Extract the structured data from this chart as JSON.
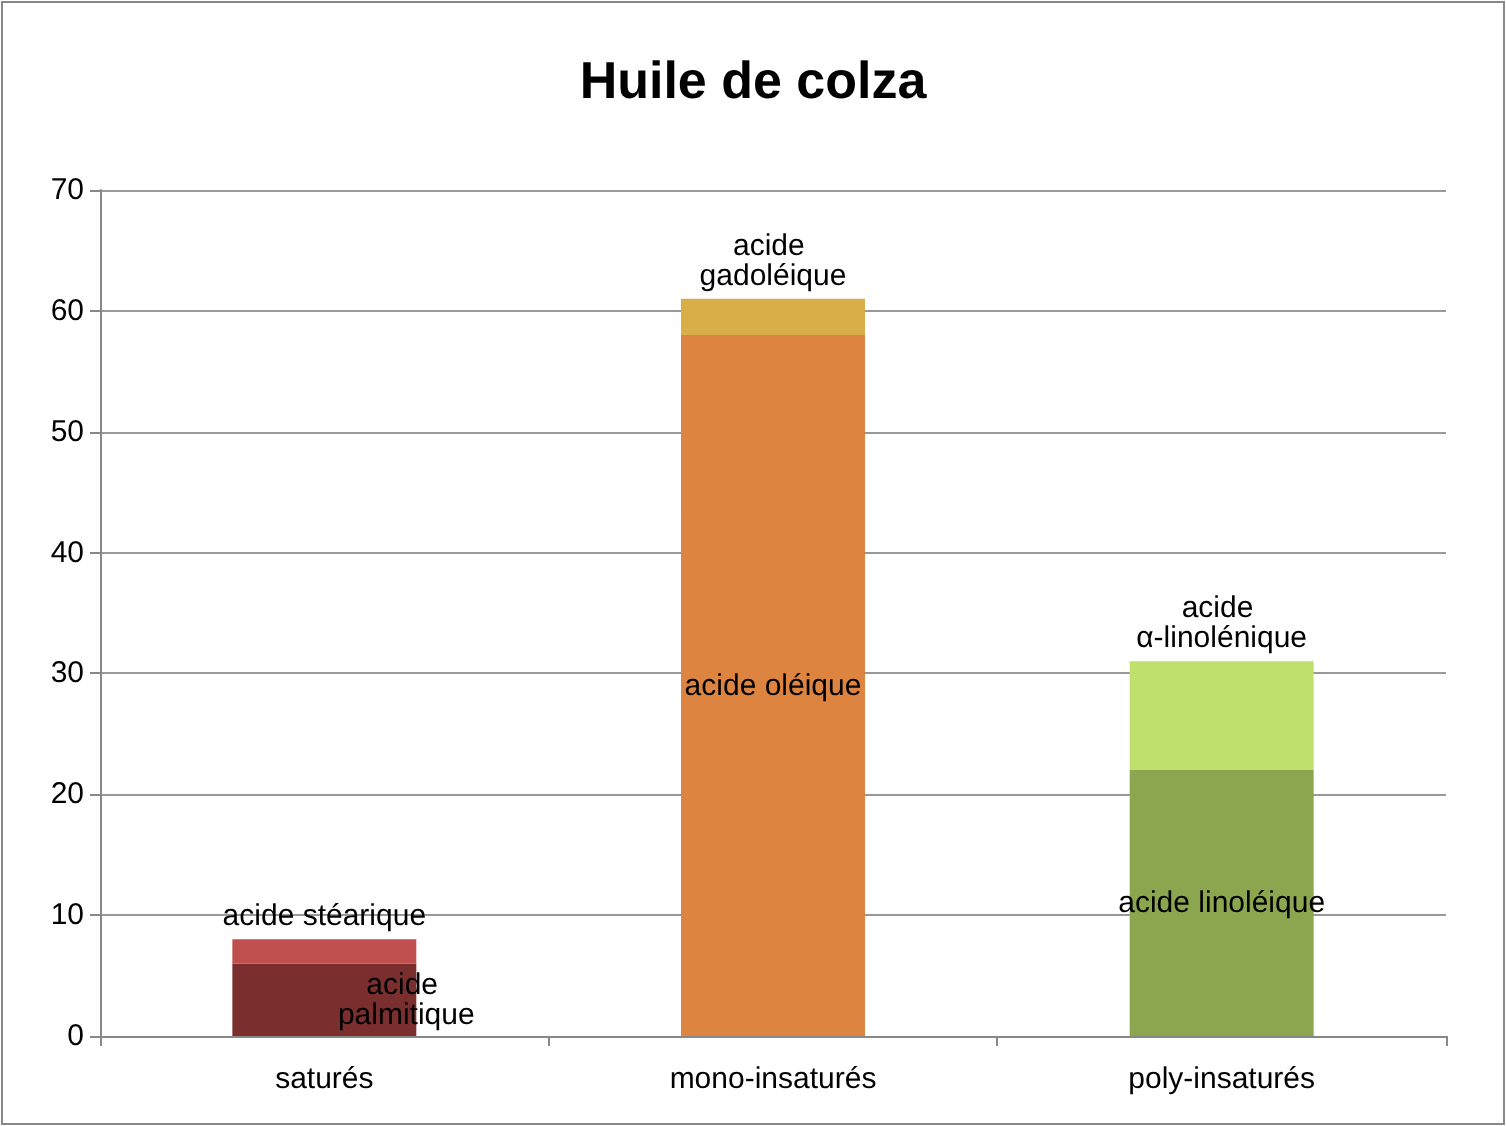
{
  "chart_data": {
    "type": "bar",
    "title": "Huile de colza",
    "categories": [
      "saturés",
      "mono-insaturés",
      "poly-insaturés"
    ],
    "stacked": true,
    "series": [
      {
        "colors": [
          "#7a2e2e",
          "#dd8440",
          "#8ba64e"
        ],
        "values": [
          6,
          58,
          22
        ],
        "value_labels": [
          "acide palmitique",
          "acide oléique",
          "acide linoléique"
        ]
      },
      {
        "colors": [
          "#c0504d",
          "#d9ad48",
          "#bfe06b"
        ],
        "values": [
          2,
          3,
          9
        ],
        "value_labels": [
          "acide stéarique",
          "acide gadoléique",
          "acide α-linolénique"
        ]
      }
    ],
    "ylim": [
      0,
      70
    ],
    "yticks": [
      0,
      10,
      20,
      30,
      40,
      50,
      60,
      70
    ],
    "grid": "y"
  }
}
